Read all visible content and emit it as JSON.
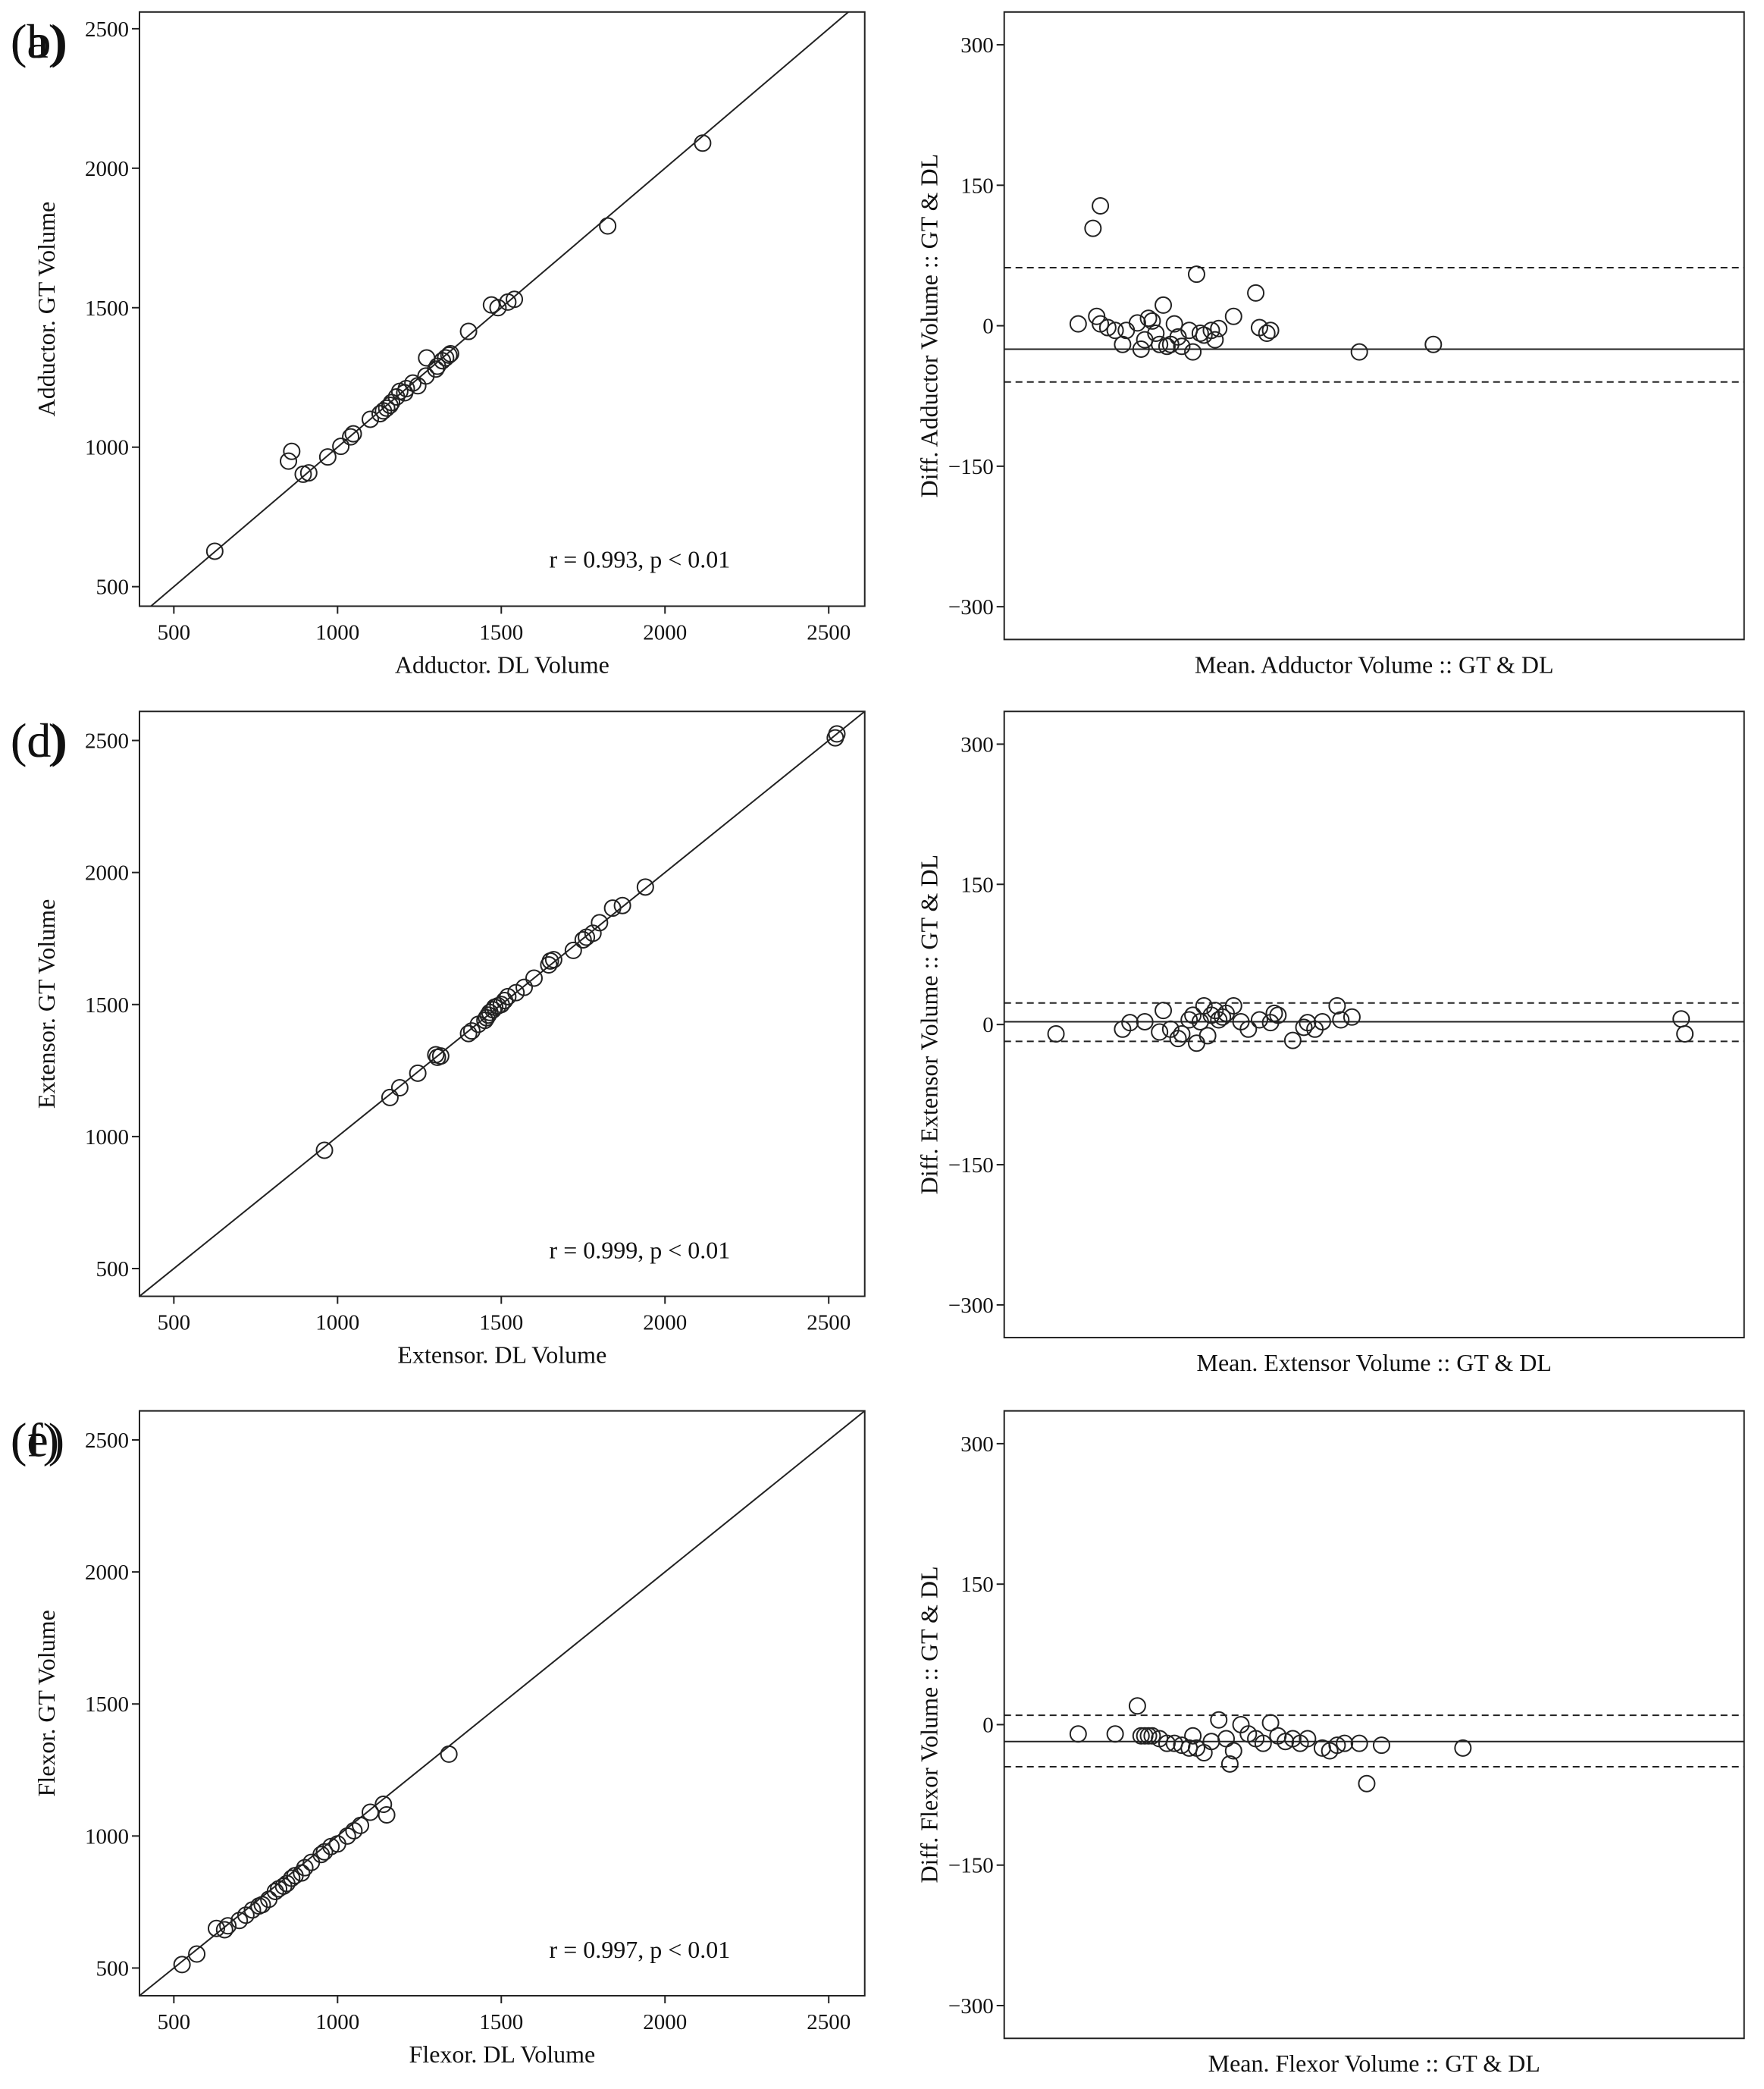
{
  "chart_data": [
    {
      "panel": "(a)",
      "type": "scatter",
      "xlabel": "Adductor. DL Volume",
      "ylabel": "Adductor. GT Volume",
      "xticks": [
        500,
        1000,
        1500,
        2000,
        2500
      ],
      "yticks": [
        500,
        1000,
        1500,
        2000,
        2500
      ],
      "xlim": [
        395,
        2610
      ],
      "ylim": [
        430,
        2560
      ],
      "identity_line": true,
      "annotation": "r = 0.993, p < 0.01",
      "points": [
        [
          625,
          627
        ],
        [
          850,
          950
        ],
        [
          860,
          985
        ],
        [
          895,
          903
        ],
        [
          912,
          908
        ],
        [
          970,
          965
        ],
        [
          1010,
          1003
        ],
        [
          1040,
          1037
        ],
        [
          1048,
          1048
        ],
        [
          1100,
          1100
        ],
        [
          1130,
          1120
        ],
        [
          1140,
          1130
        ],
        [
          1150,
          1140
        ],
        [
          1160,
          1150
        ],
        [
          1165,
          1160
        ],
        [
          1180,
          1180
        ],
        [
          1190,
          1200
        ],
        [
          1205,
          1195
        ],
        [
          1210,
          1210
        ],
        [
          1230,
          1230
        ],
        [
          1245,
          1220
        ],
        [
          1270,
          1255
        ],
        [
          1272,
          1320
        ],
        [
          1300,
          1280
        ],
        [
          1305,
          1290
        ],
        [
          1320,
          1310
        ],
        [
          1330,
          1320
        ],
        [
          1340,
          1330
        ],
        [
          1345,
          1335
        ],
        [
          1400,
          1415
        ],
        [
          1470,
          1510
        ],
        [
          1490,
          1500
        ],
        [
          1520,
          1520
        ],
        [
          1540,
          1530
        ],
        [
          1825,
          1793
        ],
        [
          2115,
          2090
        ]
      ]
    },
    {
      "panel": "(b)",
      "type": "scatter",
      "xlabel": "Mean. Adductor Volume :: GT & DL",
      "ylabel": "Diff. Adductor Volume :: GT & DL",
      "yticks": [
        300,
        150,
        0,
        -150,
        -300
      ],
      "ylim": [
        -335,
        335
      ],
      "mean_line": -25,
      "limit_lines": [
        62,
        -60
      ],
      "points": [
        [
          0.1,
          2
        ],
        [
          0.12,
          104
        ],
        [
          0.13,
          128
        ],
        [
          0.125,
          10
        ],
        [
          0.13,
          2
        ],
        [
          0.14,
          -2
        ],
        [
          0.15,
          -5
        ],
        [
          0.16,
          -20
        ],
        [
          0.165,
          -5
        ],
        [
          0.18,
          3
        ],
        [
          0.185,
          -25
        ],
        [
          0.19,
          -15
        ],
        [
          0.195,
          8
        ],
        [
          0.2,
          5
        ],
        [
          0.205,
          -8
        ],
        [
          0.21,
          -20
        ],
        [
          0.215,
          22
        ],
        [
          0.22,
          -22
        ],
        [
          0.225,
          -20
        ],
        [
          0.23,
          2
        ],
        [
          0.235,
          -12
        ],
        [
          0.24,
          -22
        ],
        [
          0.25,
          -5
        ],
        [
          0.255,
          -28
        ],
        [
          0.26,
          55
        ],
        [
          0.265,
          -8
        ],
        [
          0.27,
          -10
        ],
        [
          0.28,
          -5
        ],
        [
          0.285,
          -15
        ],
        [
          0.29,
          -3
        ],
        [
          0.31,
          10
        ],
        [
          0.34,
          35
        ],
        [
          0.345,
          -2
        ],
        [
          0.355,
          -8
        ],
        [
          0.36,
          -5
        ],
        [
          0.48,
          -28
        ],
        [
          0.58,
          -20
        ]
      ]
    },
    {
      "panel": "(c)",
      "type": "scatter",
      "xlabel": "Extensor. DL Volume",
      "ylabel": "Extensor. GT Volume",
      "xticks": [
        500,
        1000,
        1500,
        2000,
        2500
      ],
      "yticks": [
        500,
        1000,
        1500,
        2000,
        2500
      ],
      "xlim": [
        395,
        2610
      ],
      "ylim": [
        395,
        2610
      ],
      "identity_line": true,
      "annotation": "r = 0.999, p < 0.01",
      "points": [
        [
          960,
          948
        ],
        [
          1160,
          1148
        ],
        [
          1190,
          1185
        ],
        [
          1245,
          1240
        ],
        [
          1300,
          1310
        ],
        [
          1305,
          1300
        ],
        [
          1315,
          1305
        ],
        [
          1400,
          1390
        ],
        [
          1410,
          1400
        ],
        [
          1430,
          1425
        ],
        [
          1450,
          1440
        ],
        [
          1455,
          1450
        ],
        [
          1460,
          1460
        ],
        [
          1465,
          1470
        ],
        [
          1475,
          1480
        ],
        [
          1480,
          1490
        ],
        [
          1490,
          1495
        ],
        [
          1500,
          1500
        ],
        [
          1510,
          1515
        ],
        [
          1520,
          1530
        ],
        [
          1545,
          1545
        ],
        [
          1570,
          1565
        ],
        [
          1600,
          1600
        ],
        [
          1645,
          1650
        ],
        [
          1650,
          1665
        ],
        [
          1660,
          1670
        ],
        [
          1720,
          1705
        ],
        [
          1750,
          1745
        ],
        [
          1760,
          1755
        ],
        [
          1780,
          1770
        ],
        [
          1800,
          1810
        ],
        [
          1840,
          1865
        ],
        [
          1870,
          1875
        ],
        [
          1940,
          1945
        ],
        [
          2520,
          2510
        ],
        [
          2525,
          2525
        ]
      ]
    },
    {
      "panel": "(d)",
      "type": "scatter",
      "xlabel": "Mean. Extensor Volume :: GT & DL",
      "ylabel": "Diff. Extensor Volume :: GT & DL",
      "yticks": [
        300,
        150,
        0,
        -150,
        -300
      ],
      "ylim": [
        -335,
        335
      ],
      "mean_line": 3,
      "limit_lines": [
        23,
        -18
      ],
      "points": [
        [
          0.07,
          -10
        ],
        [
          0.16,
          -5
        ],
        [
          0.17,
          2
        ],
        [
          0.19,
          3
        ],
        [
          0.21,
          -8
        ],
        [
          0.215,
          15
        ],
        [
          0.225,
          -5
        ],
        [
          0.235,
          -15
        ],
        [
          0.24,
          -10
        ],
        [
          0.25,
          5
        ],
        [
          0.255,
          10
        ],
        [
          0.26,
          -20
        ],
        [
          0.265,
          3
        ],
        [
          0.27,
          20
        ],
        [
          0.275,
          -12
        ],
        [
          0.28,
          10
        ],
        [
          0.285,
          15
        ],
        [
          0.29,
          5
        ],
        [
          0.295,
          8
        ],
        [
          0.3,
          12
        ],
        [
          0.31,
          20
        ],
        [
          0.32,
          3
        ],
        [
          0.33,
          -5
        ],
        [
          0.345,
          5
        ],
        [
          0.36,
          2
        ],
        [
          0.365,
          12
        ],
        [
          0.37,
          10
        ],
        [
          0.39,
          -17
        ],
        [
          0.405,
          -3
        ],
        [
          0.41,
          2
        ],
        [
          0.42,
          -5
        ],
        [
          0.43,
          3
        ],
        [
          0.45,
          20
        ],
        [
          0.455,
          5
        ],
        [
          0.47,
          8
        ],
        [
          0.915,
          6
        ],
        [
          0.92,
          -10
        ]
      ]
    },
    {
      "panel": "(e)",
      "type": "scatter",
      "xlabel": "Flexor. DL Volume",
      "ylabel": "Flexor. GT Volume",
      "xticks": [
        500,
        1000,
        1500,
        2000,
        2500
      ],
      "yticks": [
        500,
        1000,
        1500,
        2000,
        2500
      ],
      "xlim": [
        395,
        2610
      ],
      "ylim": [
        395,
        2610
      ],
      "identity_line": true,
      "annotation": "r = 0.997, p < 0.01",
      "points": [
        [
          525,
          513
        ],
        [
          570,
          553
        ],
        [
          630,
          650
        ],
        [
          655,
          645
        ],
        [
          665,
          660
        ],
        [
          700,
          680
        ],
        [
          720,
          700
        ],
        [
          740,
          720
        ],
        [
          760,
          735
        ],
        [
          770,
          740
        ],
        [
          790,
          760
        ],
        [
          810,
          790
        ],
        [
          820,
          800
        ],
        [
          835,
          810
        ],
        [
          845,
          820
        ],
        [
          860,
          840
        ],
        [
          870,
          850
        ],
        [
          890,
          860
        ],
        [
          900,
          880
        ],
        [
          920,
          900
        ],
        [
          950,
          930
        ],
        [
          960,
          940
        ],
        [
          980,
          960
        ],
        [
          1000,
          970
        ],
        [
          1030,
          1000
        ],
        [
          1050,
          1020
        ],
        [
          1070,
          1040
        ],
        [
          1100,
          1090
        ],
        [
          1140,
          1120
        ],
        [
          1150,
          1080
        ],
        [
          1340,
          1310
        ]
      ]
    },
    {
      "panel": "(f)",
      "type": "scatter",
      "xlabel": "Mean. Flexor Volume :: GT & DL",
      "ylabel": "Diff. Flexor Volume :: GT & DL",
      "yticks": [
        300,
        150,
        0,
        -150,
        -300
      ],
      "ylim": [
        -335,
        335
      ],
      "mean_line": -18,
      "limit_lines": [
        10,
        -45
      ],
      "points": [
        [
          0.1,
          -10
        ],
        [
          0.15,
          -10
        ],
        [
          0.18,
          20
        ],
        [
          0.185,
          -12
        ],
        [
          0.19,
          -12
        ],
        [
          0.195,
          -12
        ],
        [
          0.2,
          -12
        ],
        [
          0.21,
          -15
        ],
        [
          0.22,
          -20
        ],
        [
          0.23,
          -20
        ],
        [
          0.24,
          -22
        ],
        [
          0.25,
          -25
        ],
        [
          0.255,
          -12
        ],
        [
          0.26,
          -25
        ],
        [
          0.27,
          -30
        ],
        [
          0.28,
          -18
        ],
        [
          0.29,
          5
        ],
        [
          0.3,
          -15
        ],
        [
          0.305,
          -42
        ],
        [
          0.31,
          -28
        ],
        [
          0.32,
          0
        ],
        [
          0.33,
          -10
        ],
        [
          0.34,
          -15
        ],
        [
          0.35,
          -20
        ],
        [
          0.36,
          2
        ],
        [
          0.37,
          -12
        ],
        [
          0.38,
          -18
        ],
        [
          0.39,
          -15
        ],
        [
          0.4,
          -20
        ],
        [
          0.41,
          -15
        ],
        [
          0.43,
          -25
        ],
        [
          0.44,
          -28
        ],
        [
          0.45,
          -22
        ],
        [
          0.46,
          -20
        ],
        [
          0.48,
          -20
        ],
        [
          0.49,
          -63
        ],
        [
          0.51,
          -22
        ],
        [
          0.62,
          -25
        ]
      ]
    }
  ]
}
